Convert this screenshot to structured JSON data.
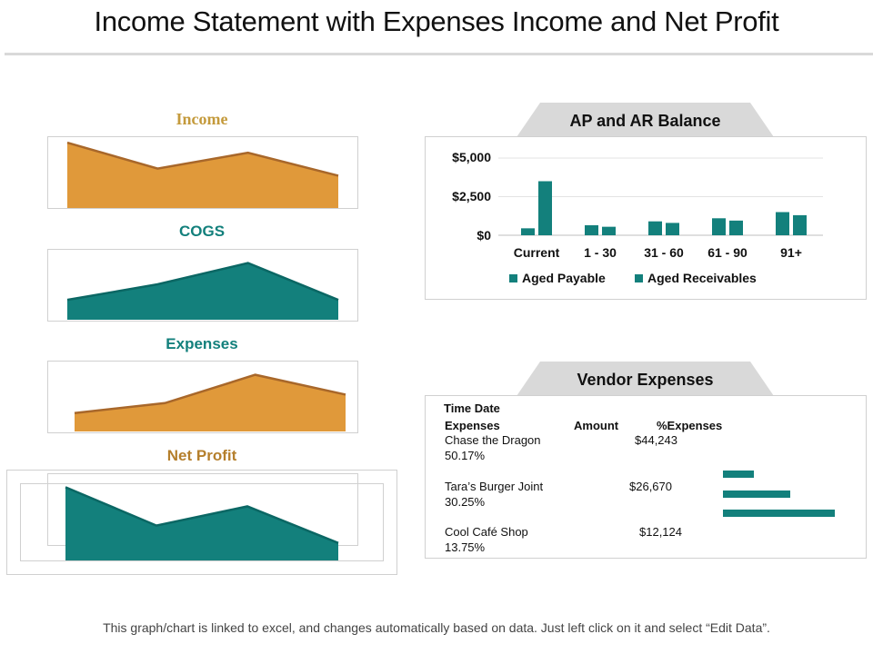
{
  "title": "Income Statement with Expenses Income and Net Profit",
  "footer": "This graph/chart is linked to excel, and changes automatically based on data. Just left click on it and select “Edit Data”.",
  "colors": {
    "gold": "#e0993a",
    "goldLine": "#a8672a",
    "teal": "#13807c",
    "tealLine": "#0b6764"
  },
  "chart_data": [
    {
      "type": "area",
      "title": "Income",
      "x": [
        1,
        2,
        3,
        4
      ],
      "values": [
        91,
        55,
        77,
        45
      ],
      "ylim": [
        0,
        100
      ]
    },
    {
      "type": "area",
      "title": "COGS",
      "x": [
        1,
        2,
        3,
        4
      ],
      "values": [
        28,
        50,
        80,
        28
      ],
      "ylim": [
        0,
        100
      ]
    },
    {
      "type": "area",
      "title": "Expenses",
      "x": [
        1,
        2,
        3,
        4
      ],
      "values": [
        26,
        40,
        80,
        52
      ],
      "ylim": [
        0,
        100
      ]
    },
    {
      "type": "area",
      "title": "Net Profit",
      "x": [
        1,
        2,
        3,
        4
      ],
      "values": [
        84,
        40,
        62,
        20
      ],
      "ylim": [
        0,
        100
      ]
    },
    {
      "type": "bar",
      "title": "AP and AR Balance",
      "categories": [
        "Current",
        "1 - 30",
        "31 - 60",
        "61 - 90",
        "91+"
      ],
      "series": [
        {
          "name": "Aged Payable",
          "values": [
            450,
            650,
            900,
            1100,
            1500
          ]
        },
        {
          "name": "Aged Receivables",
          "values": [
            3500,
            550,
            800,
            950,
            1300
          ]
        }
      ],
      "yticks": [
        "$5,000",
        "$2,500",
        "$0"
      ],
      "ylim": [
        0,
        5000
      ],
      "grid": true,
      "legend": "bottom"
    },
    {
      "type": "table",
      "title": "Vendor Expenses",
      "header_line1": "Time Date",
      "columns": [
        "Expenses",
        "Amount",
        "%Expenses"
      ],
      "rows": [
        {
          "name": "Chase the Dragon",
          "amount": "$44,243",
          "percent": "50.17%",
          "value": 50.17
        },
        {
          "name": "Tara’s Burger Joint",
          "amount": "$26,670",
          "percent": "30.25%",
          "value": 30.25
        },
        {
          "name": "Cool Café Shop",
          "amount": "$12,124",
          "percent": "13.75%",
          "value": 13.75
        }
      ]
    }
  ]
}
